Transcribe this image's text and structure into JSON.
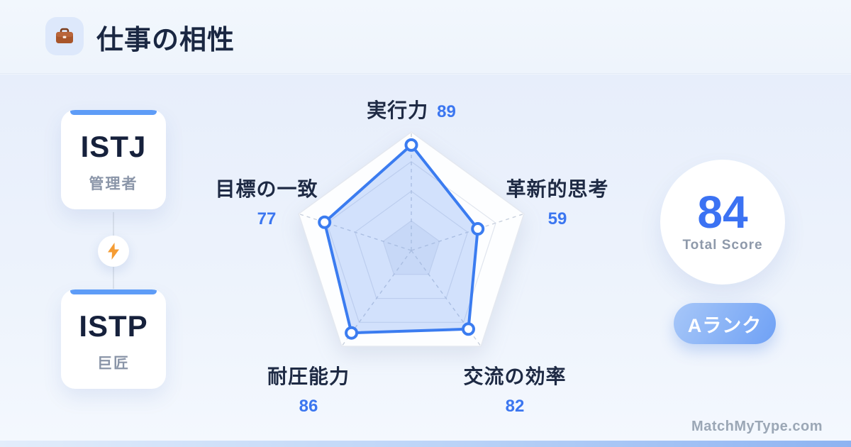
{
  "header": {
    "title": "仕事の相性",
    "icon": "briefcase-icon"
  },
  "pair": {
    "top_card": {
      "type_code": "ISTJ",
      "nickname": "管理者"
    },
    "bottom_card": {
      "type_code": "ISTP",
      "nickname": "巨匠"
    },
    "connector_icon": "lightning-icon"
  },
  "chart_data": {
    "type": "radar",
    "categories": [
      "実行力",
      "革新的思考",
      "交流の効率",
      "耐圧能力",
      "目標の一致"
    ],
    "values": [
      89,
      59,
      82,
      86,
      77
    ],
    "max": 100,
    "rings_percent": [
      25,
      50,
      75,
      100
    ],
    "grid": "pentagon, dashed spokes from center, light gray rings",
    "legend_position": "none",
    "stroke_color": "#3b7cf0",
    "fill_color": "rgba(61,125,241,0.22)",
    "point_style": "white circle with blue ring"
  },
  "score_panel": {
    "total_value": "84",
    "total_label": "Total Score",
    "rank_label": "Aランク"
  },
  "footer": {
    "watermark": "MatchMyType.com"
  },
  "colors": {
    "accent_blue": "#3b7cf0",
    "value_text_blue": "#3b76f0",
    "title_navy": "#1a2742",
    "card_topbar_blue": "#5e9cf7",
    "rank_gradient_start": "#a7c7f8",
    "rank_gradient_end": "#6fa1f5",
    "bolt_orange": "#f59c33",
    "background_tint": "#e7eefb"
  }
}
